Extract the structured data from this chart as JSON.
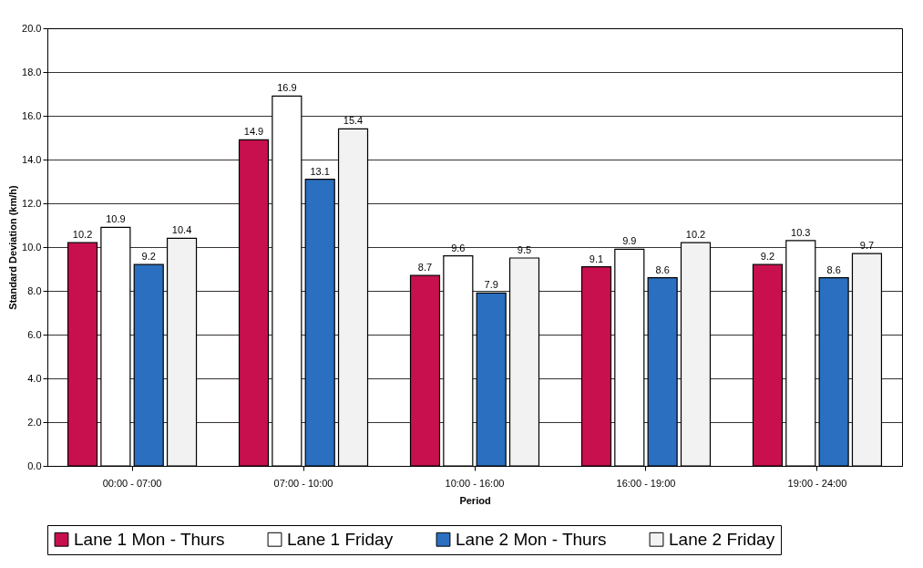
{
  "chart_data": {
    "type": "bar",
    "xlabel": "Period",
    "ylabel": "Standard Deviation (km/h)",
    "categories": [
      "00:00 - 07:00",
      "07:00 - 10:00",
      "10:00 - 16:00",
      "16:00 - 19:00",
      "19:00 - 24:00"
    ],
    "series": [
      {
        "name": "Lane 1 Mon - Thurs",
        "color": "#c8104e",
        "values": [
          10.2,
          14.9,
          8.7,
          9.1,
          9.2
        ]
      },
      {
        "name": "Lane 1 Friday",
        "color": "#ffffff",
        "values": [
          10.9,
          16.9,
          9.6,
          9.9,
          10.3
        ]
      },
      {
        "name": "Lane 2 Mon - Thurs",
        "color": "#2a6fc0",
        "values": [
          9.2,
          13.1,
          7.9,
          8.6,
          8.6
        ]
      },
      {
        "name": "Lane 2 Friday",
        "color": "#f2f2f2",
        "values": [
          10.4,
          15.4,
          9.5,
          10.2,
          9.7
        ]
      }
    ],
    "ylim": [
      0,
      20
    ],
    "yticks": [
      {
        "value": 0,
        "label": "0.0"
      },
      {
        "value": 2,
        "label": "2.0"
      },
      {
        "value": 4,
        "label": "4.0"
      },
      {
        "value": 6,
        "label": "6.0"
      },
      {
        "value": 8,
        "label": "8.0"
      },
      {
        "value": 10,
        "label": "10.0"
      },
      {
        "value": 12,
        "label": "12.0"
      },
      {
        "value": 14,
        "label": "14.0"
      },
      {
        "value": 16,
        "label": "16.0"
      },
      {
        "value": 18,
        "label": "18.0"
      },
      {
        "value": 20,
        "label": "20.0"
      }
    ],
    "grid": "y",
    "legend": "bottom",
    "data_labels": true
  }
}
